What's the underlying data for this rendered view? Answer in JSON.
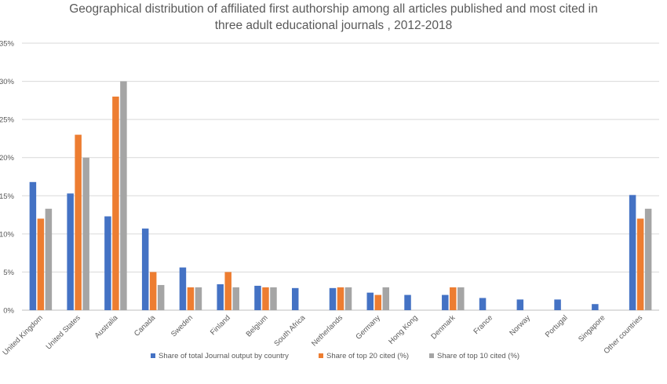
{
  "chart_data": {
    "type": "bar",
    "title_line1": "Geographical distribution of affiliated first authorship among all articles published and most cited in",
    "title_line2": "three adult educational journals , 2012-2018",
    "ylim": [
      0,
      35
    ],
    "yticks": [
      0,
      5,
      10,
      15,
      20,
      25,
      30,
      35
    ],
    "ytick_labels": [
      "0%",
      "5%",
      "10%",
      "15%",
      "20%",
      "25%",
      "30%",
      "35%"
    ],
    "grid": true,
    "legend_position": "bottom",
    "categories": [
      "United Kingdom",
      "United States",
      "Australia",
      "Canada",
      "Sweden",
      "Finland",
      "Belgium",
      "South Africa",
      "Netherlands",
      "Germany",
      "Hong Kong",
      "Denmark",
      "France",
      "Norway",
      "Portugal",
      "Singapore",
      "Other countries"
    ],
    "series": [
      {
        "name": "Share of total Journal output by country",
        "color": "#4472c4",
        "values": [
          16.8,
          15.3,
          12.3,
          10.7,
          5.6,
          3.4,
          3.2,
          2.9,
          2.9,
          2.3,
          2.0,
          2.0,
          1.6,
          1.4,
          1.4,
          0.8,
          15.1
        ]
      },
      {
        "name": "Share of top  20 cited (%)",
        "color": "#ed7d31",
        "values": [
          12,
          23,
          28,
          5,
          3,
          5,
          3,
          0,
          3,
          2,
          0,
          3,
          0,
          0,
          0,
          0,
          12
        ]
      },
      {
        "name": "Share of top  10 cited (%)",
        "color": "#a5a5a5",
        "values": [
          13.3,
          20,
          30,
          3.3,
          3,
          3,
          3,
          0,
          3,
          3,
          0,
          3,
          0,
          0,
          0,
          0,
          13.3
        ]
      }
    ]
  }
}
